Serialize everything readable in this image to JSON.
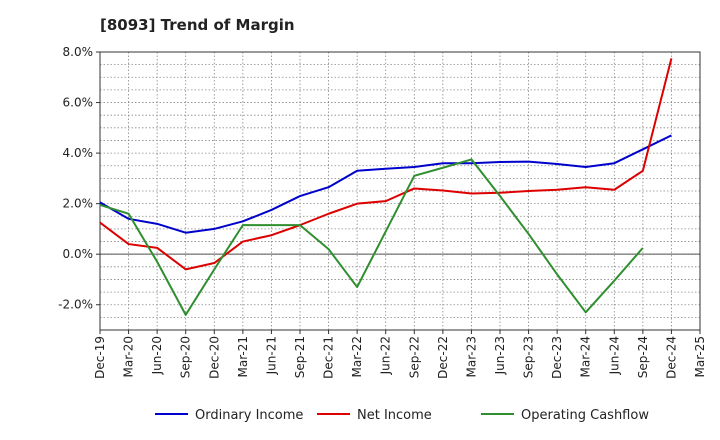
{
  "chart_data": {
    "type": "line",
    "title": "[8093]  Trend of Margin",
    "xlabel": "",
    "ylabel": "",
    "ylim": [
      -3.0,
      8.0
    ],
    "yticks": [
      -2.0,
      0.0,
      2.0,
      4.0,
      6.0,
      8.0
    ],
    "ytick_labels": [
      "-2.0%",
      "0.0%",
      "2.0%",
      "4.0%",
      "6.0%",
      "8.0%"
    ],
    "x": [
      "Dec-19",
      "Mar-20",
      "Jun-20",
      "Sep-20",
      "Dec-20",
      "Mar-21",
      "Jun-21",
      "Sep-21",
      "Dec-21",
      "Mar-22",
      "Jun-22",
      "Sep-22",
      "Dec-22",
      "Mar-23",
      "Jun-23",
      "Sep-23",
      "Dec-23",
      "Mar-24",
      "Jun-24",
      "Sep-24",
      "Dec-24",
      "Mar-25"
    ],
    "grid": true,
    "legend_position": "bottom",
    "series": [
      {
        "name": "Ordinary Income",
        "color": "#0000cc",
        "values": [
          2.05,
          1.4,
          1.2,
          0.85,
          1.0,
          1.3,
          1.75,
          2.3,
          2.65,
          3.3,
          3.38,
          3.45,
          3.6,
          3.6,
          3.65,
          3.66,
          3.57,
          3.45,
          3.6,
          4.15,
          4.7,
          null
        ]
      },
      {
        "name": "Net Income",
        "color": "#dd0000",
        "values": [
          1.25,
          0.4,
          0.25,
          -0.6,
          -0.35,
          0.5,
          0.75,
          1.15,
          1.6,
          2.0,
          2.1,
          2.6,
          2.52,
          2.4,
          2.43,
          2.5,
          2.55,
          2.65,
          2.55,
          3.3,
          7.75,
          null
        ]
      },
      {
        "name": "Operating Cashflow",
        "color": "#2f8f2f",
        "values": [
          1.95,
          1.6,
          -0.3,
          -2.4,
          -0.6,
          1.15,
          1.15,
          1.15,
          0.2,
          -1.3,
          0.9,
          3.1,
          3.42,
          3.75,
          2.3,
          0.8,
          -0.8,
          -2.3,
          -1.05,
          0.25,
          null,
          null
        ]
      }
    ]
  }
}
